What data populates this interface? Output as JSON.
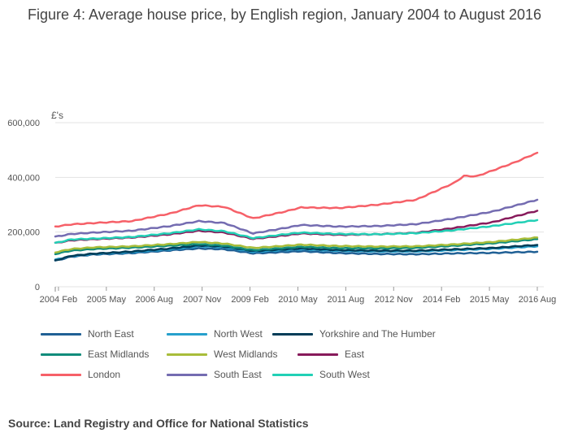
{
  "title": "Figure 4: Average house price, by English region, January 2004 to August 2016",
  "source": "Source: Land Registry and Office for National Statistics",
  "chart_data": {
    "type": "line",
    "title": "Figure 4: Average house price, by English region, January 2004 to August 2016",
    "ylabel": "£'s",
    "xlabel": "",
    "ylim": [
      0,
      600000
    ],
    "x_range": [
      "2004-01",
      "2016-08"
    ],
    "yticks": [
      0,
      200000,
      400000,
      600000
    ],
    "ytick_labels": [
      "0",
      "200,000",
      "400,000",
      "600,000"
    ],
    "xtick_labels": [
      "2004 Feb",
      "2005 May",
      "2006 Aug",
      "2007 Nov",
      "2009 Feb",
      "2010 May",
      "2011 Aug",
      "2012 Nov",
      "2014 Feb",
      "2015 May",
      "2016 Aug"
    ],
    "xticks": [
      "2004-02",
      "2005-05",
      "2006-08",
      "2007-11",
      "2009-02",
      "2010-05",
      "2011-08",
      "2012-11",
      "2014-02",
      "2015-05",
      "2016-08"
    ],
    "grid": true,
    "legend_position": "bottom",
    "series": [
      {
        "name": "North East",
        "color": "#206095",
        "points": [
          [
            "2004-01",
            95000
          ],
          [
            "2004-06",
            110000
          ],
          [
            "2005-01",
            118000
          ],
          [
            "2006-01",
            123000
          ],
          [
            "2007-01",
            133000
          ],
          [
            "2007-10",
            140000
          ],
          [
            "2008-06",
            137000
          ],
          [
            "2009-03",
            122000
          ],
          [
            "2010-01",
            127000
          ],
          [
            "2010-06",
            130000
          ],
          [
            "2011-06",
            123000
          ],
          [
            "2012-06",
            120000
          ],
          [
            "2013-06",
            119000
          ],
          [
            "2014-06",
            122000
          ],
          [
            "2015-06",
            124000
          ],
          [
            "2016-08",
            128000
          ]
        ]
      },
      {
        "name": "North West",
        "color": "#27a0cc",
        "points": [
          [
            "2004-01",
            99000
          ],
          [
            "2004-06",
            112000
          ],
          [
            "2005-01",
            120000
          ],
          [
            "2006-01",
            127000
          ],
          [
            "2007-01",
            137000
          ],
          [
            "2007-10",
            148000
          ],
          [
            "2008-06",
            144000
          ],
          [
            "2009-03",
            128000
          ],
          [
            "2010-01",
            134000
          ],
          [
            "2010-06",
            137000
          ],
          [
            "2011-06",
            131000
          ],
          [
            "2012-06",
            129000
          ],
          [
            "2013-06",
            129000
          ],
          [
            "2014-06",
            134000
          ],
          [
            "2015-06",
            139000
          ],
          [
            "2016-08",
            148000
          ]
        ]
      },
      {
        "name": "Yorkshire and The Humber",
        "color": "#003c57",
        "points": [
          [
            "2004-01",
            96000
          ],
          [
            "2004-06",
            113000
          ],
          [
            "2005-01",
            121000
          ],
          [
            "2006-01",
            129000
          ],
          [
            "2007-01",
            140000
          ],
          [
            "2007-10",
            151000
          ],
          [
            "2008-06",
            147000
          ],
          [
            "2009-03",
            131000
          ],
          [
            "2010-01",
            137000
          ],
          [
            "2010-06",
            140000
          ],
          [
            "2011-06",
            134000
          ],
          [
            "2012-06",
            132000
          ],
          [
            "2013-06",
            132000
          ],
          [
            "2014-06",
            137000
          ],
          [
            "2015-06",
            142000
          ],
          [
            "2016-08",
            153000
          ]
        ]
      },
      {
        "name": "East Midlands",
        "color": "#118c7b",
        "points": [
          [
            "2004-01",
            120000
          ],
          [
            "2004-06",
            132000
          ],
          [
            "2005-01",
            138000
          ],
          [
            "2006-01",
            143000
          ],
          [
            "2007-01",
            150000
          ],
          [
            "2007-10",
            156000
          ],
          [
            "2008-06",
            150000
          ],
          [
            "2009-03",
            134000
          ],
          [
            "2010-01",
            142000
          ],
          [
            "2010-06",
            146000
          ],
          [
            "2011-06",
            141000
          ],
          [
            "2012-06",
            140000
          ],
          [
            "2013-06",
            142000
          ],
          [
            "2014-06",
            150000
          ],
          [
            "2015-06",
            159000
          ],
          [
            "2016-08",
            174000
          ]
        ]
      },
      {
        "name": "West Midlands",
        "color": "#a8bd3a",
        "points": [
          [
            "2004-01",
            126000
          ],
          [
            "2004-06",
            138000
          ],
          [
            "2005-01",
            144000
          ],
          [
            "2006-01",
            148000
          ],
          [
            "2007-01",
            156000
          ],
          [
            "2007-10",
            164000
          ],
          [
            "2008-06",
            158000
          ],
          [
            "2009-03",
            142000
          ],
          [
            "2010-01",
            150000
          ],
          [
            "2010-06",
            154000
          ],
          [
            "2011-06",
            149000
          ],
          [
            "2012-06",
            147000
          ],
          [
            "2013-06",
            148000
          ],
          [
            "2014-06",
            155000
          ],
          [
            "2015-06",
            164000
          ],
          [
            "2016-08",
            180000
          ]
        ]
      },
      {
        "name": "East",
        "color": "#871a5b",
        "points": [
          [
            "2004-01",
            160000
          ],
          [
            "2004-06",
            170000
          ],
          [
            "2005-01",
            174000
          ],
          [
            "2006-01",
            180000
          ],
          [
            "2007-01",
            192000
          ],
          [
            "2007-10",
            205000
          ],
          [
            "2008-06",
            198000
          ],
          [
            "2009-03",
            175000
          ],
          [
            "2010-01",
            188000
          ],
          [
            "2010-06",
            195000
          ],
          [
            "2011-06",
            190000
          ],
          [
            "2012-06",
            192000
          ],
          [
            "2013-06",
            197000
          ],
          [
            "2014-06",
            215000
          ],
          [
            "2015-06",
            236000
          ],
          [
            "2016-08",
            278000
          ]
        ]
      },
      {
        "name": "London",
        "color": "#f66068",
        "points": [
          [
            "2004-01",
            220000
          ],
          [
            "2004-06",
            228000
          ],
          [
            "2005-01",
            233000
          ],
          [
            "2006-01",
            240000
          ],
          [
            "2006-06",
            252000
          ],
          [
            "2007-01",
            268000
          ],
          [
            "2007-10",
            298000
          ],
          [
            "2008-06",
            292000
          ],
          [
            "2009-03",
            250000
          ],
          [
            "2010-01",
            275000
          ],
          [
            "2010-06",
            290000
          ],
          [
            "2011-06",
            288000
          ],
          [
            "2012-06",
            300000
          ],
          [
            "2013-06",
            318000
          ],
          [
            "2014-06",
            380000
          ],
          [
            "2014-09",
            405000
          ],
          [
            "2015-01",
            404000
          ],
          [
            "2015-06",
            425000
          ],
          [
            "2016-01",
            455000
          ],
          [
            "2016-08",
            490000
          ]
        ]
      },
      {
        "name": "South East",
        "color": "#746cb1",
        "points": [
          [
            "2004-01",
            183000
          ],
          [
            "2004-06",
            193000
          ],
          [
            "2005-01",
            198000
          ],
          [
            "2006-01",
            205000
          ],
          [
            "2007-01",
            222000
          ],
          [
            "2007-10",
            240000
          ],
          [
            "2008-06",
            233000
          ],
          [
            "2009-03",
            195000
          ],
          [
            "2010-01",
            215000
          ],
          [
            "2010-06",
            226000
          ],
          [
            "2011-06",
            220000
          ],
          [
            "2012-06",
            222000
          ],
          [
            "2013-06",
            229000
          ],
          [
            "2014-06",
            250000
          ],
          [
            "2015-06",
            275000
          ],
          [
            "2016-08",
            318000
          ]
        ]
      },
      {
        "name": "South West",
        "color": "#22d0b6",
        "points": [
          [
            "2004-01",
            160000
          ],
          [
            "2004-06",
            173000
          ],
          [
            "2005-01",
            176000
          ],
          [
            "2006-01",
            182000
          ],
          [
            "2007-01",
            196000
          ],
          [
            "2007-10",
            210000
          ],
          [
            "2008-06",
            203000
          ],
          [
            "2009-03",
            178000
          ],
          [
            "2010-01",
            192000
          ],
          [
            "2010-06",
            198000
          ],
          [
            "2011-06",
            193000
          ],
          [
            "2012-06",
            192000
          ],
          [
            "2013-06",
            196000
          ],
          [
            "2014-06",
            207000
          ],
          [
            "2015-06",
            222000
          ],
          [
            "2016-08",
            244000
          ]
        ]
      }
    ]
  }
}
